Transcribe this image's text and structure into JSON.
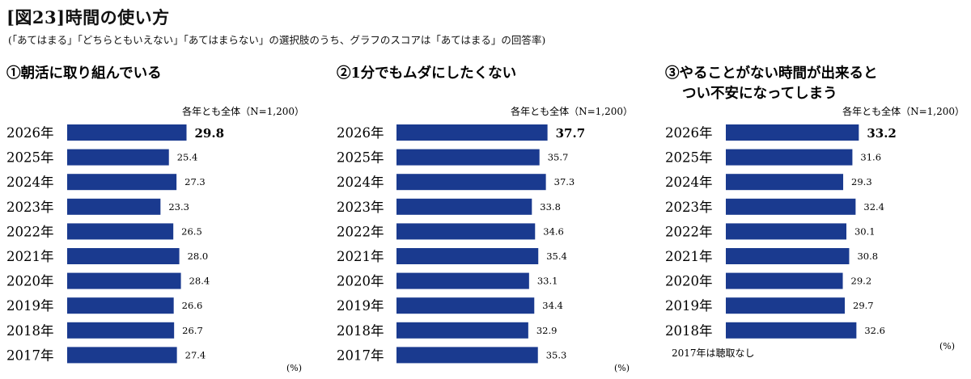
{
  "page": {
    "title": "[図23]時間の使い方",
    "subtitle": "(「あてはまる」「どちらともいえない」「あてはまらない」の選択肢のうち、グラフのスコアは「あてはまる」の回答率)"
  },
  "colors": {
    "bar": "#1a3a8f"
  },
  "chart_data": [
    {
      "type": "bar",
      "orientation": "horizontal",
      "title_lines": [
        "①朝活に取り組んでいる"
      ],
      "note": "各年とも全体（N=1,200）",
      "unit": "(%)",
      "footnote": "",
      "categories": [
        "2026年",
        "2025年",
        "2024年",
        "2023年",
        "2022年",
        "2021年",
        "2020年",
        "2019年",
        "2018年",
        "2017年"
      ],
      "values": [
        29.8,
        25.4,
        27.3,
        23.3,
        26.5,
        28.0,
        28.4,
        26.6,
        26.7,
        27.4
      ],
      "value_labels": [
        "29.8",
        "25.4",
        "27.3",
        "23.3",
        "26.5",
        "28.0",
        "28.4",
        "26.6",
        "26.7",
        "27.4"
      ],
      "xlim": [
        0,
        50
      ]
    },
    {
      "type": "bar",
      "orientation": "horizontal",
      "title_lines": [
        "②1分でもムダにしたくない"
      ],
      "note": "各年とも全体（N=1,200）",
      "unit": "(%)",
      "footnote": "",
      "categories": [
        "2026年",
        "2025年",
        "2024年",
        "2023年",
        "2022年",
        "2021年",
        "2020年",
        "2019年",
        "2018年",
        "2017年"
      ],
      "values": [
        37.7,
        35.7,
        37.3,
        33.8,
        34.6,
        35.4,
        33.1,
        34.4,
        32.9,
        35.3
      ],
      "value_labels": [
        "37.7",
        "35.7",
        "37.3",
        "33.8",
        "34.6",
        "35.4",
        "33.1",
        "34.4",
        "32.9",
        "35.3"
      ],
      "xlim": [
        0,
        50
      ]
    },
    {
      "type": "bar",
      "orientation": "horizontal",
      "title_lines": [
        "③やることがない時間が出来ると",
        "つい不安になってしまう"
      ],
      "note": "各年とも全体（N=1,200）",
      "unit": "(%)",
      "footnote": "2017年は聴取なし",
      "categories": [
        "2026年",
        "2025年",
        "2024年",
        "2023年",
        "2022年",
        "2021年",
        "2020年",
        "2019年",
        "2018年"
      ],
      "values": [
        33.2,
        31.6,
        29.3,
        32.4,
        30.1,
        30.8,
        29.2,
        29.7,
        32.6
      ],
      "value_labels": [
        "33.2",
        "31.6",
        "29.3",
        "32.4",
        "30.1",
        "30.8",
        "29.2",
        "29.7",
        "32.6"
      ],
      "xlim": [
        0,
        50
      ]
    }
  ]
}
